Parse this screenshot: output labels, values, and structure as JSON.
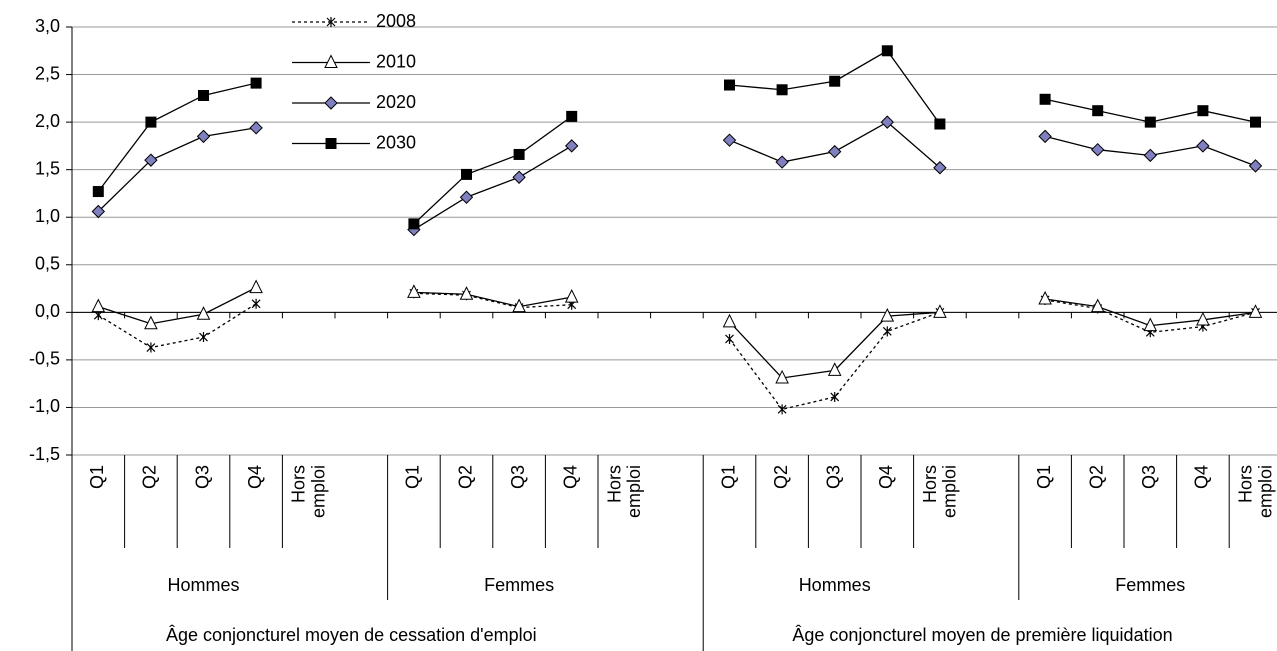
{
  "chart_data": {
    "type": "line",
    "categories": [
      "Q1",
      "Q2",
      "Q3",
      "Q4",
      "Hors emploi",
      null,
      "Q1",
      "Q2",
      "Q3",
      "Q4",
      "Hors emploi",
      null,
      "Q1",
      "Q2",
      "Q3",
      "Q4",
      "Hors emploi",
      null,
      "Q1",
      "Q2",
      "Q3",
      "Q4",
      "Hors emploi"
    ],
    "category_groups": [
      "Hommes",
      "Femmes",
      "Hommes",
      "Femmes"
    ],
    "category_supergroups": [
      "Âge conjoncturel moyen de cessation d'emploi",
      "Âge conjoncturel moyen de première liquidation"
    ],
    "series": [
      {
        "name": "2008",
        "color": "#000000",
        "marker": "asterisk",
        "dashed": true,
        "values": [
          -0.03,
          -0.37,
          -0.26,
          0.09,
          null,
          null,
          0.2,
          0.18,
          0.05,
          0.08,
          null,
          null,
          -0.28,
          -1.02,
          -0.89,
          -0.2,
          0.0,
          null,
          0.13,
          0.04,
          -0.21,
          -0.15,
          0.0
        ]
      },
      {
        "name": "2010",
        "color": "#000000",
        "marker": "triangle",
        "values": [
          0.06,
          -0.12,
          -0.02,
          0.26,
          null,
          null,
          0.21,
          0.19,
          0.06,
          0.16,
          null,
          null,
          -0.1,
          -0.69,
          -0.61,
          -0.04,
          0.0,
          null,
          0.14,
          0.06,
          -0.14,
          -0.08,
          0.0
        ]
      },
      {
        "name": "2020",
        "color": "#8080c0",
        "marker": "diamond",
        "values": [
          1.06,
          1.6,
          1.85,
          1.94,
          null,
          null,
          0.87,
          1.21,
          1.42,
          1.75,
          null,
          null,
          1.81,
          1.58,
          1.69,
          2.0,
          1.52,
          null,
          1.85,
          1.71,
          1.65,
          1.75,
          1.54
        ]
      },
      {
        "name": "2030",
        "color": "#000000",
        "marker": "square",
        "values": [
          1.27,
          2.0,
          2.28,
          2.41,
          null,
          null,
          0.93,
          1.45,
          1.66,
          2.06,
          null,
          null,
          2.39,
          2.34,
          2.43,
          2.75,
          1.98,
          null,
          2.24,
          2.12,
          2.0,
          2.12,
          2.0
        ]
      }
    ],
    "ylim": [
      -1.5,
      3.0
    ],
    "yticks": [
      {
        "value": -1.5,
        "label": "-1,5"
      },
      {
        "value": -1,
        "label": "-1,0"
      },
      {
        "value": -0.5,
        "label": "-0,5"
      },
      {
        "value": 0,
        "label": "0,0"
      },
      {
        "value": 0.5,
        "label": "0,5"
      },
      {
        "value": 1,
        "label": "1,0"
      },
      {
        "value": 1.5,
        "label": "1,5"
      },
      {
        "value": 2,
        "label": "2,0"
      },
      {
        "value": 2.5,
        "label": "2,5"
      },
      {
        "value": 3,
        "label": "3,0"
      }
    ],
    "grid": true,
    "legend": "upper-left"
  }
}
